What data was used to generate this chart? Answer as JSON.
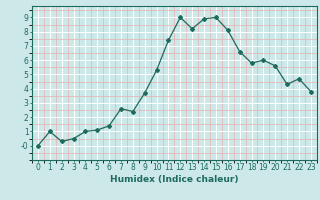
{
  "x": [
    0,
    1,
    2,
    3,
    4,
    5,
    6,
    7,
    8,
    9,
    10,
    11,
    12,
    13,
    14,
    15,
    16,
    17,
    18,
    19,
    20,
    21,
    22,
    23
  ],
  "y": [
    -0.0,
    1.0,
    0.3,
    0.5,
    1.0,
    1.1,
    1.4,
    2.6,
    2.4,
    3.7,
    5.3,
    7.4,
    9.0,
    8.2,
    8.9,
    9.0,
    8.1,
    6.6,
    5.8,
    6.0,
    5.6,
    4.3,
    4.7,
    3.8
  ],
  "line_color": "#1e6b5e",
  "marker": "D",
  "markersize": 2,
  "bg_color": "#cce8e8",
  "grid_major_color": "#ffffff",
  "grid_minor_color": "#e8b0b0",
  "xlabel": "Humidex (Indice chaleur)",
  "xlim": [
    -0.5,
    23.5
  ],
  "ylim": [
    -1.0,
    9.8
  ],
  "yticks": [
    0,
    1,
    2,
    3,
    4,
    5,
    6,
    7,
    8,
    9
  ],
  "xticks": [
    0,
    1,
    2,
    3,
    4,
    5,
    6,
    7,
    8,
    9,
    10,
    11,
    12,
    13,
    14,
    15,
    16,
    17,
    18,
    19,
    20,
    21,
    22,
    23
  ],
  "tick_fontsize": 5.5,
  "xlabel_fontsize": 6.5,
  "axis_color": "#1e6b5e",
  "linewidth": 0.9
}
